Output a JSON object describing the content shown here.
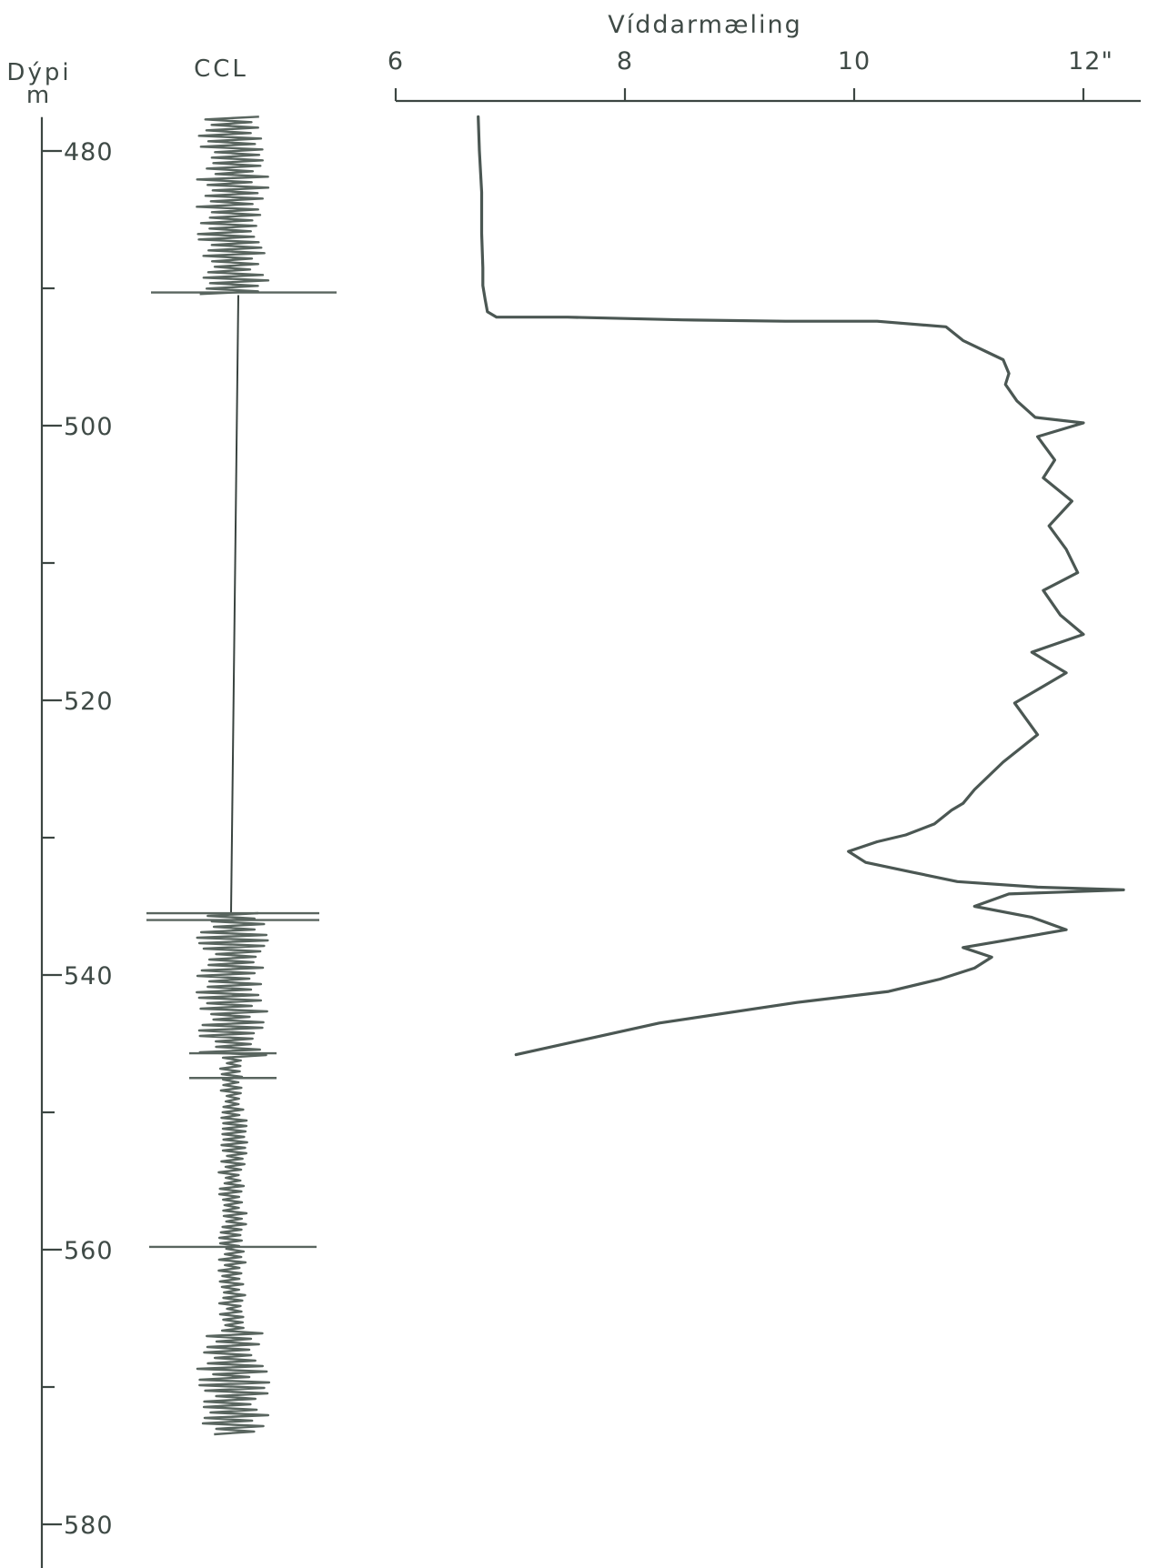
{
  "chart_data": {
    "type": "line",
    "title": "Víddarmæling",
    "depth_axis": {
      "label": "Dýpi",
      "unit": "m",
      "ticks": [
        480,
        500,
        520,
        540,
        560,
        580
      ],
      "minor_ticks": [
        490,
        510,
        530,
        550,
        570
      ],
      "range": [
        477,
        583
      ]
    },
    "ccl_track": {
      "label": "CCL",
      "noisy_intervals": [
        [
          477.5,
          490.5
        ],
        [
          535.5,
          573.5
        ]
      ],
      "collar_spikes": [
        535.5,
        536.0,
        545.7,
        547.5,
        559.8
      ]
    },
    "caliper_axis": {
      "ticks": [
        6,
        8,
        10,
        12
      ],
      "tick_labels": [
        "6",
        "8",
        "10",
        "12\""
      ],
      "range": [
        6,
        12.5
      ]
    },
    "series": [
      {
        "x": [
          6.72,
          6.73,
          6.75,
          6.75,
          6.76,
          6.76,
          6.78,
          6.8,
          6.88,
          7.5,
          8.5,
          9.4,
          10.2,
          10.8,
          10.95,
          11.15,
          11.3,
          11.35,
          11.32,
          11.42,
          11.58,
          12.0,
          11.6,
          11.75,
          11.65,
          11.9,
          11.7,
          11.85,
          11.95,
          11.65,
          11.8,
          12.0,
          11.55,
          11.85,
          11.4,
          11.6,
          11.3,
          11.05,
          10.95,
          10.85,
          10.7,
          10.45,
          10.2,
          9.95,
          10.1,
          10.5,
          10.9,
          11.6,
          12.35,
          11.35,
          11.05,
          11.55,
          11.85,
          11.3,
          10.95,
          11.2,
          11.05,
          10.75,
          10.3,
          9.5,
          8.3,
          7.05
        ],
        "y": [
          477.5,
          480.0,
          483.0,
          486.0,
          488.5,
          489.8,
          490.8,
          491.7,
          492.1,
          492.1,
          492.3,
          492.4,
          492.4,
          492.8,
          493.8,
          494.6,
          495.2,
          496.2,
          497.0,
          498.2,
          499.4,
          499.8,
          500.8,
          502.5,
          503.8,
          505.5,
          507.3,
          509.0,
          510.7,
          512.0,
          513.8,
          515.2,
          516.5,
          518.0,
          520.2,
          522.5,
          524.5,
          526.5,
          527.5,
          528.0,
          529.0,
          529.8,
          530.3,
          531.0,
          531.8,
          532.5,
          533.2,
          533.6,
          533.8,
          534.1,
          535.0,
          535.8,
          536.7,
          537.5,
          538.0,
          538.7,
          539.5,
          540.3,
          541.2,
          542.0,
          543.5,
          545.8
        ]
      }
    ]
  }
}
